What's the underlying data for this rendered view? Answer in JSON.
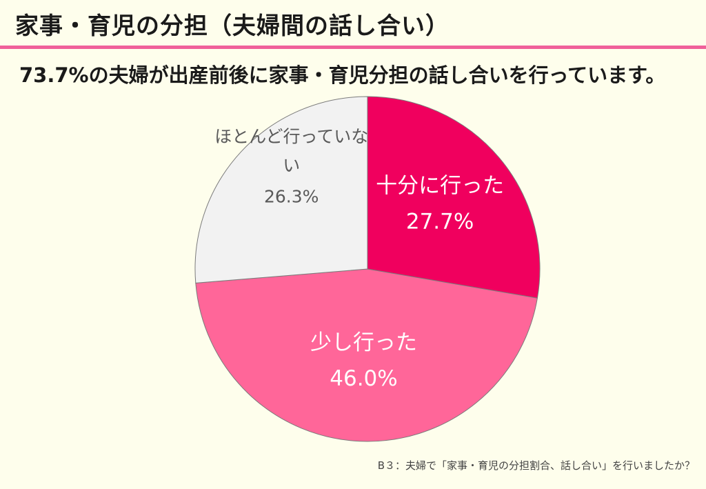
{
  "header": {
    "title": "家事・育児の分担（夫婦間の話し合い）"
  },
  "subtitle": "73.7%の夫婦が出産前後に家事・育児分担の話し合いを行っています。",
  "footnote": "B３：夫婦で「家事・育児の分担割合、話し合い」を行いましたか？",
  "colors": {
    "background": "#FEFEEC",
    "accent_rule": "#F0609A",
    "slice_full": "#F0005E",
    "slice_some": "#FF6699",
    "slice_none": "#F2F2F2"
  },
  "chart_data": {
    "type": "pie",
    "title": "",
    "start": "12 o'clock",
    "direction": "clockwise",
    "slices": [
      {
        "label": "十分に行った",
        "value": 27.7,
        "value_label": "27.7%",
        "color": "#F0005E",
        "text_color": "#FFFFFF"
      },
      {
        "label": "少し行った",
        "value": 46.0,
        "value_label": "46.0%",
        "color": "#FF6699",
        "text_color": "#FFFFFF"
      },
      {
        "label": "ほとんど行っていない",
        "value": 26.3,
        "value_label": "26.3%",
        "color": "#F2F2F2",
        "text_color": "#595959"
      }
    ]
  }
}
